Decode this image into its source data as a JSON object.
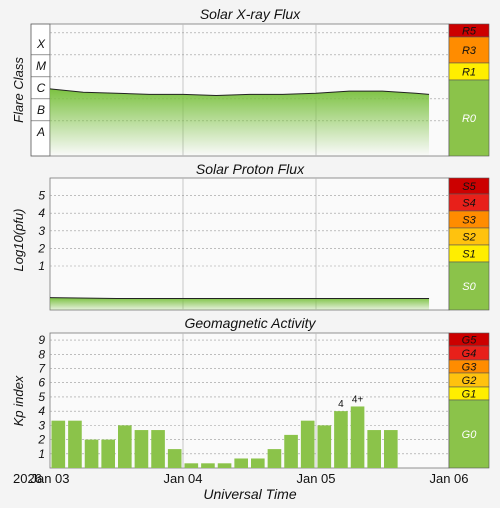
{
  "chart_data": [
    {
      "type": "area",
      "title": "Solar X-ray Flux",
      "ylabel": "Flare Class",
      "y_tick_labels": [
        "X",
        "M",
        "C",
        "B",
        "A"
      ],
      "scale": {
        "levels": [
          {
            "label": "R5",
            "color": "#cc0000",
            "text_color": "#111111"
          },
          {
            "label": "R3",
            "color": "#ff8c00",
            "text_color": "#111111"
          },
          {
            "label": "R1",
            "color": "#ffee00",
            "text_color": "#111111"
          },
          {
            "label": "R0",
            "color": "#8bc34a",
            "text_color": "#ffffff"
          }
        ]
      },
      "series": [
        {
          "x": [
            0,
            0.25,
            0.5,
            0.75,
            1.0,
            1.25,
            1.5,
            1.75,
            2.0,
            2.25,
            2.5,
            2.75,
            2.85
          ],
          "y": [
            2.45,
            2.3,
            2.25,
            2.2,
            2.2,
            2.15,
            2.2,
            2.2,
            2.25,
            2.35,
            2.35,
            2.25,
            2.2
          ]
        }
      ]
    },
    {
      "type": "area",
      "title": "Solar Proton Flux",
      "ylabel": "Log10(pfu)",
      "ylim": [
        -1.5,
        6
      ],
      "y_ticks": [
        1,
        2,
        3,
        4,
        5
      ],
      "scale": {
        "levels": [
          {
            "label": "S5",
            "color": "#cc0000",
            "text_color": "#111111"
          },
          {
            "label": "S4",
            "color": "#e8201a",
            "text_color": "#111111"
          },
          {
            "label": "S3",
            "color": "#ff8c00",
            "text_color": "#111111"
          },
          {
            "label": "S2",
            "color": "#ffc20e",
            "text_color": "#111111"
          },
          {
            "label": "S1",
            "color": "#ffee00",
            "text_color": "#111111"
          },
          {
            "label": "S0",
            "color": "#8bc34a",
            "text_color": "#ffffff"
          }
        ]
      },
      "series": [
        {
          "x": [
            0,
            0.5,
            1.0,
            1.5,
            2.0,
            2.5,
            2.85
          ],
          "y": [
            -0.8,
            -0.85,
            -0.85,
            -0.85,
            -0.85,
            -0.85,
            -0.85
          ]
        }
      ]
    },
    {
      "type": "bar",
      "title": "Geomagnetic Activity",
      "ylabel": "Kp index",
      "xlabel": "Universal Time",
      "year_label": "2026",
      "x_tick_labels": [
        "Jan 03",
        "Jan 04",
        "Jan 05",
        "Jan 06"
      ],
      "ylim": [
        0,
        9.5
      ],
      "y_ticks": [
        1,
        2,
        3,
        4,
        5,
        6,
        7,
        8,
        9
      ],
      "scale": {
        "levels": [
          {
            "label": "G5",
            "color": "#cc0000",
            "text_color": "#111111"
          },
          {
            "label": "G4",
            "color": "#e8201a",
            "text_color": "#111111"
          },
          {
            "label": "G3",
            "color": "#ff8c00",
            "text_color": "#111111"
          },
          {
            "label": "G2",
            "color": "#ffc20e",
            "text_color": "#111111"
          },
          {
            "label": "G1",
            "color": "#ffee00",
            "text_color": "#111111"
          },
          {
            "label": "G0",
            "color": "#8bc34a",
            "text_color": "#ffffff"
          }
        ]
      },
      "bar_color": "#8bc34a",
      "values": [
        3.33,
        3.33,
        2.0,
        2.0,
        3.0,
        2.67,
        2.67,
        1.33,
        0.33,
        0.33,
        0.33,
        0.67,
        0.67,
        1.33,
        2.33,
        3.33,
        3.0,
        4.0,
        4.33,
        2.67,
        2.67
      ],
      "data_labels": [
        {
          "index": 17,
          "text": "4"
        },
        {
          "index": 18,
          "text": "4+"
        }
      ]
    }
  ]
}
